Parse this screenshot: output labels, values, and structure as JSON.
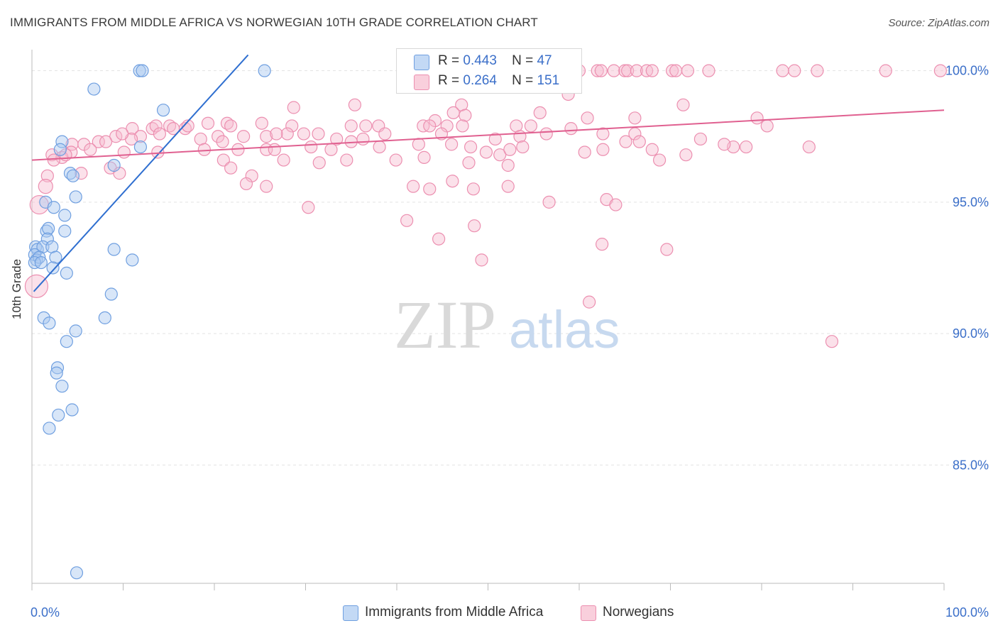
{
  "header": {
    "title": "IMMIGRANTS FROM MIDDLE AFRICA VS NORWEGIAN 10TH GRADE CORRELATION CHART",
    "source": "Source: ZipAtlas.com"
  },
  "watermark": {
    "zip": "ZIP",
    "atlas": "atlas"
  },
  "legend": {
    "blue": {
      "r_label": "R =",
      "r_value": "0.443",
      "n_label": "N =",
      "n_value": "47"
    },
    "pink": {
      "r_label": "R =",
      "r_value": "0.264",
      "n_label": "N =",
      "n_value": "151"
    }
  },
  "colors": {
    "blue_fill": "#a9c8f0",
    "blue_stroke": "#6f9fe0",
    "blue_line": "#2f6fd0",
    "pink_fill": "#f7bdd0",
    "pink_stroke": "#ec8fb0",
    "pink_line": "#e06090",
    "tick_label": "#3b6fc9",
    "grid": "#e3e3e3"
  },
  "chart_data": {
    "type": "scatter",
    "title": "IMMIGRANTS FROM MIDDLE AFRICA VS NORWEGIAN 10TH GRADE CORRELATION CHART",
    "xlabel": "",
    "ylabel": "10th Grade",
    "xlim": [
      0,
      100
    ],
    "ylim": [
      80.5,
      100.8
    ],
    "x_tick_labels": [
      "0.0%",
      "100.0%"
    ],
    "y_ticks": [
      85,
      90,
      95,
      100
    ],
    "y_tick_labels": [
      "85.0%",
      "90.0%",
      "95.0%",
      "100.0%"
    ],
    "series": [
      {
        "name": "Immigrants from Middle Africa",
        "color": "blue",
        "trend": {
          "x": [
            0.2,
            23.7
          ],
          "y": [
            91.6,
            100.6
          ]
        },
        "points": [
          [
            11.8,
            100.0
          ],
          [
            12.1,
            100.0
          ],
          [
            25.5,
            100.0
          ],
          [
            6.8,
            99.3
          ],
          [
            14.4,
            98.5
          ],
          [
            11.9,
            97.1
          ],
          [
            3.3,
            97.3
          ],
          [
            3.1,
            97.0
          ],
          [
            9.0,
            96.4
          ],
          [
            4.2,
            96.1
          ],
          [
            4.5,
            96.0
          ],
          [
            4.8,
            95.2
          ],
          [
            1.5,
            95.0
          ],
          [
            2.4,
            94.8
          ],
          [
            3.6,
            94.5
          ],
          [
            1.6,
            93.9
          ],
          [
            1.8,
            94.0
          ],
          [
            3.6,
            93.9
          ],
          [
            1.7,
            93.6
          ],
          [
            0.4,
            93.3
          ],
          [
            0.6,
            93.2
          ],
          [
            1.2,
            93.3
          ],
          [
            2.2,
            93.3
          ],
          [
            9.0,
            93.2
          ],
          [
            0.3,
            93.0
          ],
          [
            0.5,
            92.8
          ],
          [
            0.8,
            92.9
          ],
          [
            2.6,
            92.9
          ],
          [
            0.3,
            92.7
          ],
          [
            1.0,
            92.7
          ],
          [
            11.0,
            92.8
          ],
          [
            2.3,
            92.5
          ],
          [
            3.8,
            92.3
          ],
          [
            8.7,
            91.5
          ],
          [
            1.3,
            90.6
          ],
          [
            1.9,
            90.4
          ],
          [
            8.0,
            90.6
          ],
          [
            4.8,
            90.1
          ],
          [
            3.8,
            89.7
          ],
          [
            2.8,
            88.7
          ],
          [
            2.7,
            88.5
          ],
          [
            3.3,
            88.0
          ],
          [
            2.9,
            86.9
          ],
          [
            4.4,
            87.1
          ],
          [
            1.9,
            86.4
          ],
          [
            4.9,
            80.9
          ]
        ]
      },
      {
        "name": "Norwegians",
        "color": "pink",
        "trend": {
          "x": [
            0,
            100
          ],
          "y": [
            96.6,
            98.5
          ]
        },
        "points": [
          [
            57.5,
            100.0
          ],
          [
            60.0,
            100.0
          ],
          [
            62.0,
            100.0
          ],
          [
            62.4,
            100.0
          ],
          [
            63.8,
            100.0
          ],
          [
            65.0,
            100.0
          ],
          [
            65.3,
            100.0
          ],
          [
            66.3,
            100.0
          ],
          [
            67.4,
            100.0
          ],
          [
            68.0,
            100.0
          ],
          [
            70.2,
            100.0
          ],
          [
            70.6,
            100.0
          ],
          [
            71.9,
            100.0
          ],
          [
            74.2,
            100.0
          ],
          [
            82.3,
            100.0
          ],
          [
            83.6,
            100.0
          ],
          [
            86.1,
            100.0
          ],
          [
            93.6,
            100.0
          ],
          [
            99.6,
            100.0
          ],
          [
            58.8,
            99.1
          ],
          [
            28.7,
            98.6
          ],
          [
            35.4,
            98.7
          ],
          [
            47.1,
            98.7
          ],
          [
            46.2,
            98.4
          ],
          [
            47.5,
            98.3
          ],
          [
            55.7,
            98.4
          ],
          [
            71.4,
            98.7
          ],
          [
            66.1,
            98.2
          ],
          [
            60.9,
            98.2
          ],
          [
            79.5,
            98.2
          ],
          [
            44.2,
            98.1
          ],
          [
            45.5,
            97.9
          ],
          [
            53.1,
            97.9
          ],
          [
            54.7,
            97.9
          ],
          [
            35.0,
            97.9
          ],
          [
            36.6,
            97.9
          ],
          [
            38.0,
            97.9
          ],
          [
            42.9,
            97.9
          ],
          [
            43.6,
            97.9
          ],
          [
            47.2,
            97.9
          ],
          [
            21.4,
            98.0
          ],
          [
            15.1,
            97.9
          ],
          [
            16.8,
            97.8
          ],
          [
            13.2,
            97.8
          ],
          [
            15.5,
            97.8
          ],
          [
            17.1,
            97.9
          ],
          [
            19.3,
            98.0
          ],
          [
            21.8,
            97.9
          ],
          [
            25.2,
            98.0
          ],
          [
            28.5,
            97.9
          ],
          [
            11.0,
            97.8
          ],
          [
            13.6,
            97.9
          ],
          [
            14.0,
            97.6
          ],
          [
            11.9,
            97.5
          ],
          [
            10.9,
            97.4
          ],
          [
            9.2,
            97.5
          ],
          [
            18.5,
            97.4
          ],
          [
            20.4,
            97.5
          ],
          [
            20.9,
            97.3
          ],
          [
            23.2,
            97.5
          ],
          [
            28.0,
            97.6
          ],
          [
            25.7,
            97.5
          ],
          [
            26.8,
            97.6
          ],
          [
            29.8,
            97.6
          ],
          [
            31.4,
            97.6
          ],
          [
            33.4,
            97.4
          ],
          [
            36.3,
            97.4
          ],
          [
            38.7,
            97.6
          ],
          [
            44.9,
            97.6
          ],
          [
            50.8,
            97.4
          ],
          [
            53.5,
            97.5
          ],
          [
            56.4,
            97.6
          ],
          [
            59.1,
            97.8
          ],
          [
            62.6,
            97.6
          ],
          [
            66.1,
            97.6
          ],
          [
            66.6,
            97.3
          ],
          [
            73.3,
            97.4
          ],
          [
            76.9,
            97.1
          ],
          [
            80.6,
            97.9
          ],
          [
            85.2,
            97.1
          ],
          [
            9.9,
            97.6
          ],
          [
            7.3,
            97.3
          ],
          [
            8.1,
            97.3
          ],
          [
            4.4,
            97.2
          ],
          [
            5.7,
            97.2
          ],
          [
            6.4,
            97.0
          ],
          [
            4.3,
            96.9
          ],
          [
            2.2,
            96.8
          ],
          [
            3.3,
            96.7
          ],
          [
            3.7,
            96.8
          ],
          [
            2.4,
            96.6
          ],
          [
            13.8,
            96.9
          ],
          [
            10.1,
            96.9
          ],
          [
            18.9,
            97.0
          ],
          [
            22.6,
            97.0
          ],
          [
            25.7,
            97.0
          ],
          [
            26.6,
            97.0
          ],
          [
            30.6,
            97.1
          ],
          [
            32.8,
            97.0
          ],
          [
            38.1,
            97.1
          ],
          [
            35.0,
            97.3
          ],
          [
            42.4,
            97.2
          ],
          [
            46.0,
            97.2
          ],
          [
            48.1,
            97.1
          ],
          [
            49.8,
            96.9
          ],
          [
            51.3,
            96.8
          ],
          [
            52.4,
            97.0
          ],
          [
            53.8,
            97.1
          ],
          [
            60.6,
            96.9
          ],
          [
            62.6,
            97.0
          ],
          [
            65.1,
            97.3
          ],
          [
            71.7,
            96.8
          ],
          [
            75.9,
            97.2
          ],
          [
            78.3,
            97.1
          ],
          [
            68.0,
            97.0
          ],
          [
            68.8,
            96.6
          ],
          [
            21.0,
            96.6
          ],
          [
            21.8,
            96.3
          ],
          [
            24.1,
            96.0
          ],
          [
            27.6,
            96.6
          ],
          [
            31.5,
            96.5
          ],
          [
            34.5,
            96.6
          ],
          [
            39.9,
            96.6
          ],
          [
            43.0,
            96.7
          ],
          [
            47.9,
            96.5
          ],
          [
            52.2,
            96.4
          ],
          [
            5.4,
            96.1
          ],
          [
            8.6,
            96.3
          ],
          [
            9.6,
            96.1
          ],
          [
            23.5,
            95.7
          ],
          [
            25.7,
            95.6
          ],
          [
            41.8,
            95.6
          ],
          [
            43.6,
            95.5
          ],
          [
            46.1,
            95.8
          ],
          [
            48.4,
            95.5
          ],
          [
            52.2,
            95.6
          ],
          [
            56.7,
            95.0
          ],
          [
            63.0,
            95.1
          ],
          [
            64.0,
            94.9
          ],
          [
            30.3,
            94.8
          ],
          [
            48.5,
            94.1
          ],
          [
            41.1,
            94.3
          ],
          [
            44.6,
            93.6
          ],
          [
            62.5,
            93.4
          ],
          [
            69.6,
            93.2
          ],
          [
            49.3,
            92.8
          ],
          [
            61.1,
            91.2
          ],
          [
            87.7,
            89.7
          ],
          [
            1.7,
            96.0
          ],
          [
            1.5,
            95.6
          ],
          [
            0.8,
            94.9
          ],
          [
            0.5,
            91.8
          ]
        ]
      }
    ]
  },
  "bottom_legend": {
    "items": [
      {
        "label": "Immigrants from Middle Africa"
      },
      {
        "label": "Norwegians"
      }
    ]
  }
}
